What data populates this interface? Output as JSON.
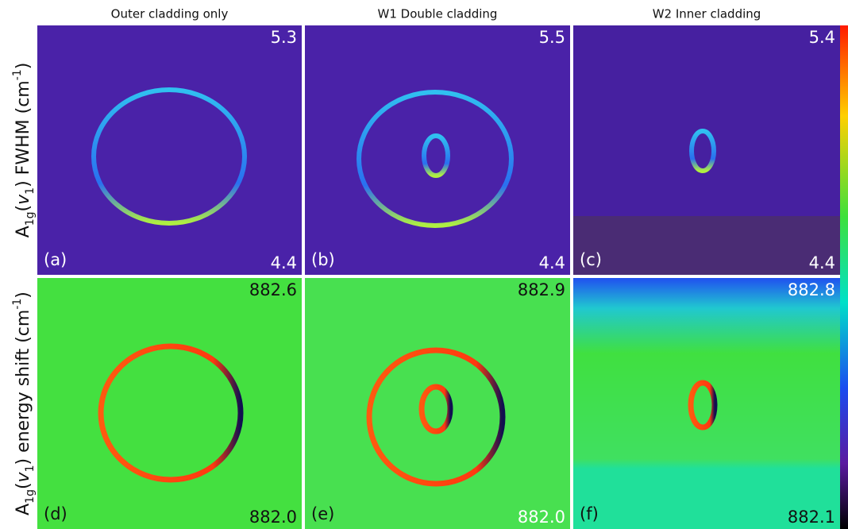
{
  "column_titles": [
    "Outer cladding only",
    "W1 Double cladding",
    "W2 Inner cladding"
  ],
  "row_labels": [
    [
      "A",
      "1g",
      "(",
      "v",
      "1",
      ") FWHM (cm",
      "-1",
      ")"
    ],
    [
      "A",
      "1g",
      "(",
      "v",
      "1",
      ") energy shift (cm",
      "-1",
      ")"
    ]
  ],
  "panels": [
    {
      "label": "(a)",
      "max": "5.3",
      "min": "4.4"
    },
    {
      "label": "(b)",
      "max": "5.5",
      "min": "4.4"
    },
    {
      "label": "(c)",
      "max": "5.4",
      "min": "4.4"
    },
    {
      "label": "(d)",
      "max": "882.6",
      "min": "882.0"
    },
    {
      "label": "(e)",
      "max": "882.9",
      "min": "882.0"
    },
    {
      "label": "(f)",
      "max": "882.8",
      "min": "882.1"
    }
  ]
}
